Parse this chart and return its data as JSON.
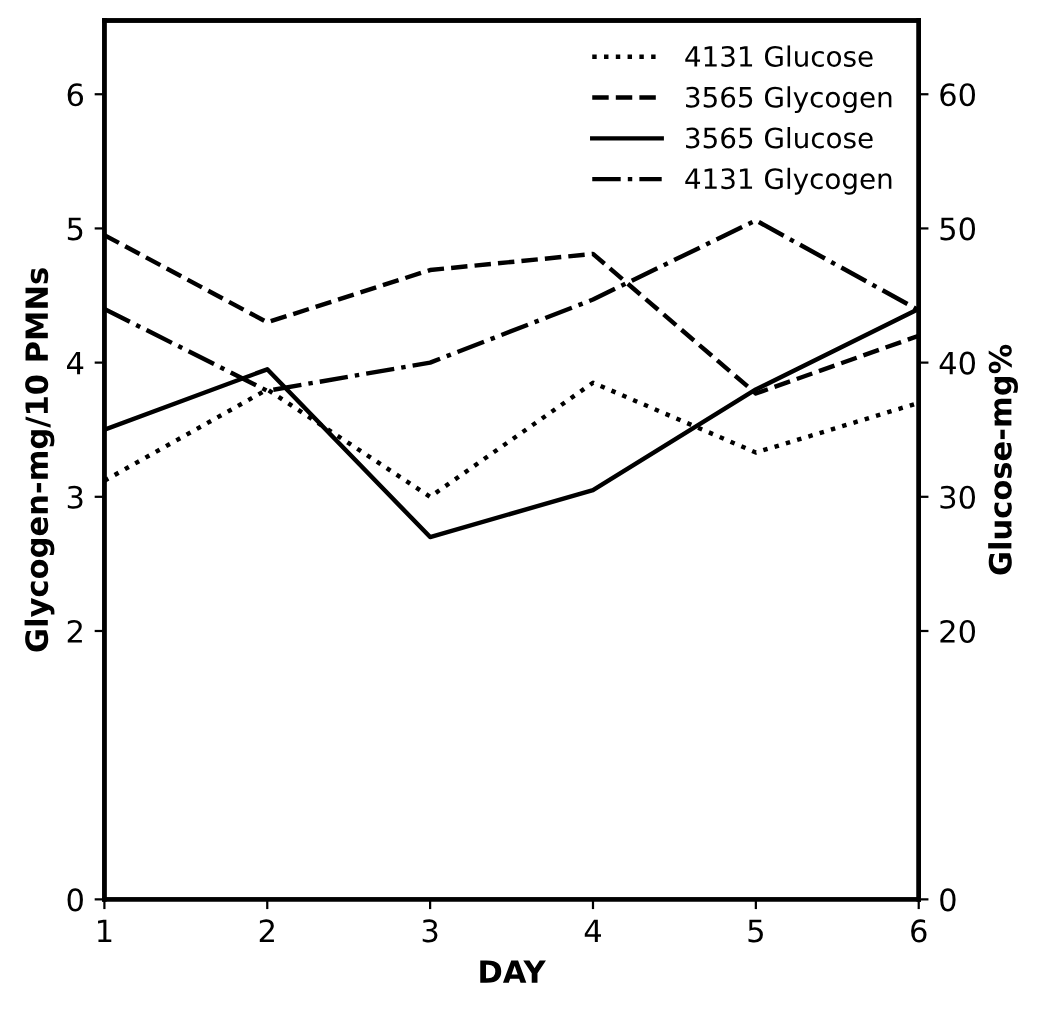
{
  "chart_data": {
    "type": "line",
    "xlabel": "DAY",
    "ylabel": "Glycogen-mg/10 PMNs",
    "y2label": "Glucose-mg%",
    "x": [
      1,
      2,
      3,
      4,
      5,
      6
    ],
    "xlim": [
      1,
      6
    ],
    "xticks": [
      1,
      2,
      3,
      4,
      5,
      6
    ],
    "ylim": [
      0,
      6.55
    ],
    "yticks": [
      0,
      2,
      3,
      4,
      5,
      6
    ],
    "y2lim": [
      0,
      65.5
    ],
    "y2ticks": [
      0,
      20,
      30,
      40,
      50,
      60
    ],
    "grid": false,
    "legend": "top right",
    "marker": "none",
    "series": [
      {
        "name": "4131 Glucose",
        "color": "#000000",
        "axis": "y2",
        "line_style": "dotted",
        "values": [
          31.2,
          38,
          30,
          38.5,
          33.3,
          37
        ]
      },
      {
        "name": "3565 Glycogen",
        "color": "#000000",
        "line_style": "dashed",
        "values": [
          4.95,
          4.3,
          4.69,
          4.81,
          3.77,
          4.2
        ]
      },
      {
        "name": "3565 Glucose",
        "color": "#000000",
        "axis": "y2",
        "line_style": "solid",
        "values": [
          35,
          39.5,
          27,
          30.5,
          38,
          44
        ]
      },
      {
        "name": "4131 Glycogen",
        "color": "#000000",
        "line_style": "dashdot",
        "values": [
          4.4,
          3.79,
          4.0,
          4.47,
          5.06,
          4.39
        ]
      }
    ]
  }
}
